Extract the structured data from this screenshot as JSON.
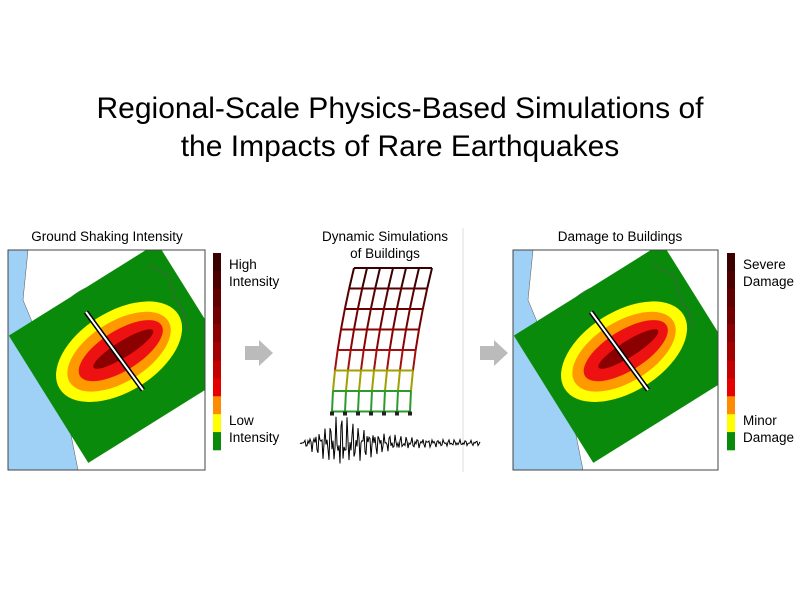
{
  "header": {
    "title": [
      "Regional-Scale Physics-Based Simulations of",
      "the Impacts of Rare Earthquakes"
    ]
  },
  "panels": [
    {
      "title": [
        "Ground Shaking Intensity"
      ],
      "legend_top": [
        "High",
        "Intensity"
      ],
      "legend_bottom": [
        "Low",
        "Intensity"
      ]
    },
    {
      "title": [
        "Dynamic Simulations",
        "of Buildings"
      ]
    },
    {
      "title": [
        "Damage to Buildings"
      ],
      "legend_top": [
        "Severe",
        "Damage"
      ],
      "legend_bottom": [
        "Minor",
        "Damage"
      ]
    }
  ]
}
